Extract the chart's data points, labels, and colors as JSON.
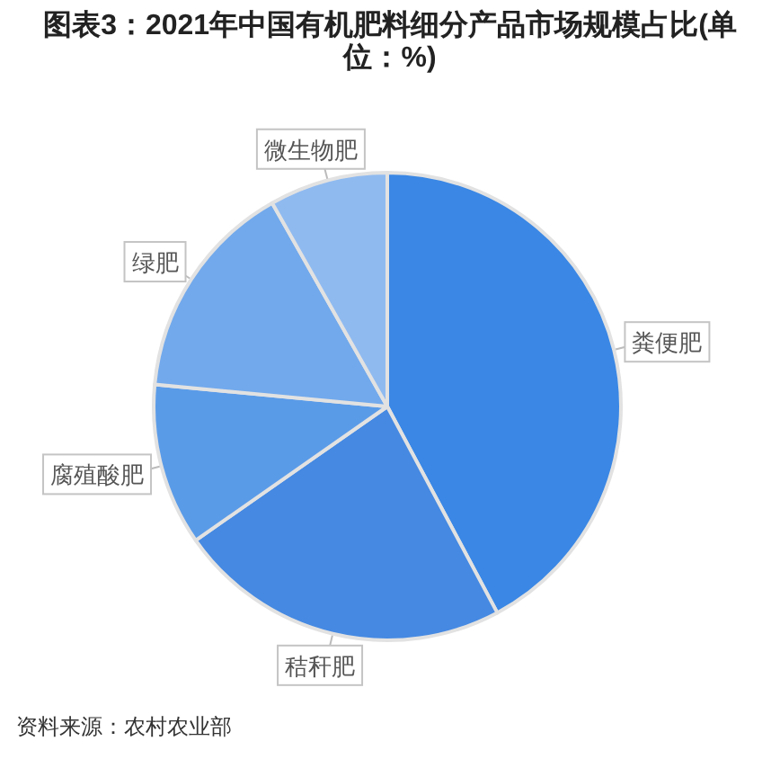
{
  "chart_data": {
    "type": "pie",
    "title": "图表3：2021年中国有机肥料细分产品市场规模占比(单位：%)",
    "categories": [
      "粪便肥",
      "秸秆肥",
      "腐殖酸肥",
      "绿肥",
      "微生物肥"
    ],
    "values": [
      42.2,
      23.1,
      11.2,
      15.3,
      8.2
    ],
    "colors": [
      "#3a87e5",
      "#4589e2",
      "#5a9be8",
      "#72a9ec",
      "#8fbaf0"
    ],
    "annotations": [
      "资料来源：农村农业部"
    ]
  }
}
